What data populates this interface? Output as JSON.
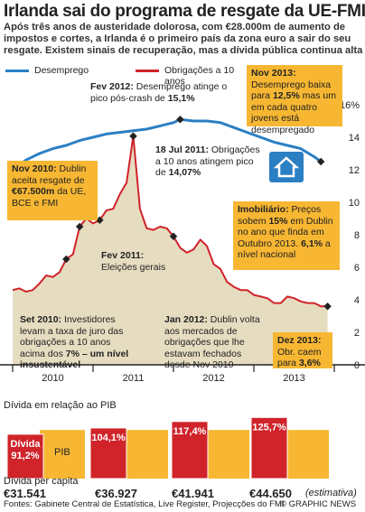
{
  "title": "Irlanda sai do programa de resgate da UE-FMI",
  "subtitle": "Após três anos de austeridade dolorosa, com €28.000m de aumento de impostos e cortes, a Irlanda é o primeiro país da zona euro a sair do seu resgate. Existem sinais de recuperação, mas a dívida pública continua alta",
  "legend": {
    "unemployment": "Desemprego",
    "bonds": "Obrigações a 10 anos"
  },
  "colors": {
    "unemployment": "#2b7fc3",
    "bonds": "#d0232a",
    "box": "#f7b733",
    "gdp": "#f7b733",
    "debt": "#d0232a",
    "shade": "#e6dcc0",
    "axis": "#222"
  },
  "annotations": {
    "fev2012": {
      "date": "Fev 2012:",
      "text": "Desemprego atinge o pico pós-crash de ",
      "value": "15,1%"
    },
    "nov2013": {
      "date": "Nov 2013:",
      "text": "Desemprego baixa para ",
      "value": "12,5%",
      "text2": " mas um em cada quatro jovens está desempregado"
    },
    "nov2010": {
      "date": "Nov 2010:",
      "text": "Dublin aceita resgate de ",
      "value": "€67.500m",
      "text2": " da UE, BCE e FMI"
    },
    "jul2011": {
      "date": "18 Jul 2011:",
      "text": "Obrigações a 10 anos atingem pico de ",
      "value": "14,07%"
    },
    "imob": {
      "title": "Imobiliário:",
      "text": "Preços sobem ",
      "value": "15%",
      "text2": " em Dublin no ano que finda em Outubro 2013. ",
      "value2": "6,1%",
      "text3": " a nível nacional"
    },
    "fev2011": {
      "date": "Fev 2011:",
      "text": "Eleições gerais"
    },
    "set2010": {
      "date": "Set 2010:",
      "text": "Investidores levam a taxa de juro das obrigações a 10 anos acima dos ",
      "value": "7% – um nível insustentável"
    },
    "jan2012": {
      "date": "Jan 2012:",
      "text": "Dublin volta aos mercados de obrigações que lhe estavam fechados desde Nov 2010"
    },
    "dez2013": {
      "date": "Dez 2013:",
      "text": "Obr. caem para ",
      "value": "3,6%"
    }
  },
  "chart_data": [
    {
      "type": "line",
      "title": "",
      "y_axis_side": "right",
      "ylim": [
        0,
        17
      ],
      "yticks": [
        "16%",
        "14",
        "12",
        "10",
        "8",
        "6",
        "4",
        "2",
        "0"
      ],
      "xlim": [
        "2010-01",
        "2014-01"
      ],
      "x_tick_labels": [
        "2010",
        "2011",
        "2012",
        "2013"
      ],
      "grid": false,
      "legend_position": "top-left",
      "series": [
        {
          "name": "Desemprego",
          "x": [
            "2010-01",
            "2010-03",
            "2010-05",
            "2010-07",
            "2010-09",
            "2010-11",
            "2011-01",
            "2011-03",
            "2011-05",
            "2011-07",
            "2011-09",
            "2011-11",
            "2012-01",
            "2012-02",
            "2012-04",
            "2012-06",
            "2012-08",
            "2012-10",
            "2012-12",
            "2013-02",
            "2013-04",
            "2013-06",
            "2013-08",
            "2013-10",
            "2013-11"
          ],
          "values": [
            12.0,
            12.6,
            13.0,
            13.3,
            13.5,
            13.8,
            14.0,
            14.2,
            14.3,
            14.4,
            14.5,
            14.7,
            14.9,
            15.1,
            15.0,
            15.0,
            14.9,
            14.6,
            14.3,
            14.0,
            13.7,
            13.5,
            13.3,
            12.8,
            12.5
          ]
        },
        {
          "name": "Obrigações a 10 anos",
          "x": [
            "2010-01",
            "2010-02",
            "2010-03",
            "2010-04",
            "2010-05",
            "2010-06",
            "2010-07",
            "2010-08",
            "2010-09",
            "2010-10",
            "2010-11",
            "2010-12",
            "2011-01",
            "2011-02",
            "2011-03",
            "2011-04",
            "2011-05",
            "2011-06",
            "2011-07",
            "2011-08",
            "2011-09",
            "2011-10",
            "2011-11",
            "2011-12",
            "2012-01",
            "2012-02",
            "2012-03",
            "2012-04",
            "2012-05",
            "2012-06",
            "2012-07",
            "2012-08",
            "2012-09",
            "2012-10",
            "2012-11",
            "2012-12",
            "2013-01",
            "2013-02",
            "2013-03",
            "2013-04",
            "2013-05",
            "2013-06",
            "2013-07",
            "2013-08",
            "2013-09",
            "2013-10",
            "2013-11",
            "2013-12"
          ],
          "values": [
            4.6,
            4.7,
            4.5,
            4.6,
            5.0,
            5.5,
            5.4,
            5.7,
            6.5,
            6.8,
            8.5,
            9.0,
            8.7,
            8.9,
            9.5,
            9.6,
            10.5,
            11.2,
            14.07,
            9.6,
            8.4,
            8.3,
            8.5,
            8.4,
            7.9,
            7.2,
            6.9,
            7.1,
            7.7,
            7.3,
            6.2,
            5.9,
            5.1,
            4.8,
            4.6,
            4.6,
            4.3,
            4.2,
            4.1,
            3.8,
            3.8,
            4.2,
            4.1,
            3.9,
            3.8,
            3.8,
            3.6,
            3.6
          ]
        }
      ]
    },
    {
      "type": "bar",
      "title": "Dívida em relação ao PIB",
      "categories": [
        "2010",
        "2011",
        "2012",
        "2013"
      ],
      "series": [
        {
          "name": "Dívida",
          "values": [
            91.2,
            104.1,
            117.4,
            125.7
          ]
        },
        {
          "name": "PIB",
          "values": [
            100,
            100,
            100,
            100
          ]
        }
      ],
      "labels": [
        "Dívida 91,2%",
        "104,1%",
        "117,4%",
        "125,7%"
      ],
      "pib_label": "PIB"
    }
  ],
  "per_capita": {
    "label": "Dívida per capita",
    "values": [
      "€31.541",
      "€36.927",
      "€41.941",
      "€44.650"
    ],
    "note": "(estimativa)"
  },
  "footer": {
    "sources": "Fontes: Gabinete Central de Estatística, Live Register, Projecções do FMI",
    "credit": "© GRAPHIC NEWS"
  }
}
